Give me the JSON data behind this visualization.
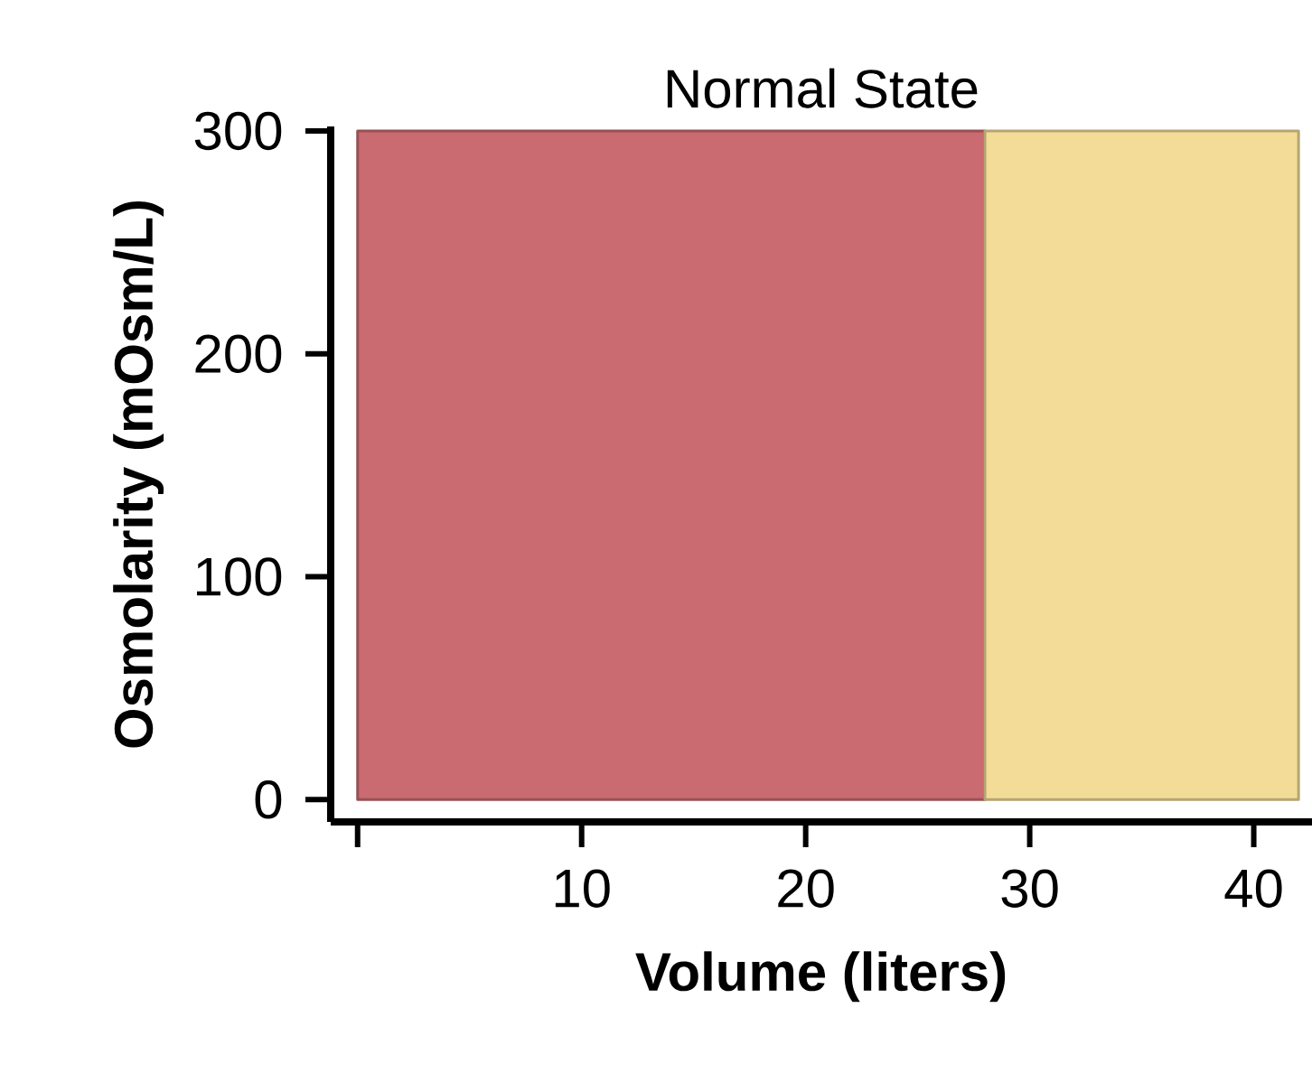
{
  "chart_data": {
    "type": "area",
    "title": "Normal State",
    "xlabel": "Volume (liters)",
    "ylabel": "Osmolarity (mOsm/L)",
    "series": [
      {
        "color": "#c96b70",
        "x": [
          0,
          28
        ],
        "values": [
          300,
          300
        ]
      },
      {
        "color": "#f2dc98",
        "x": [
          28,
          42
        ],
        "values": [
          300,
          300
        ]
      }
    ],
    "xlim": [
      -1.2,
      42.6
    ],
    "ylim": [
      -10,
      302
    ],
    "xticks": [
      {
        "value": 0,
        "label": null
      },
      10,
      20,
      30,
      40
    ],
    "yticks": [
      0,
      100,
      200,
      300
    ],
    "grid": false
  }
}
